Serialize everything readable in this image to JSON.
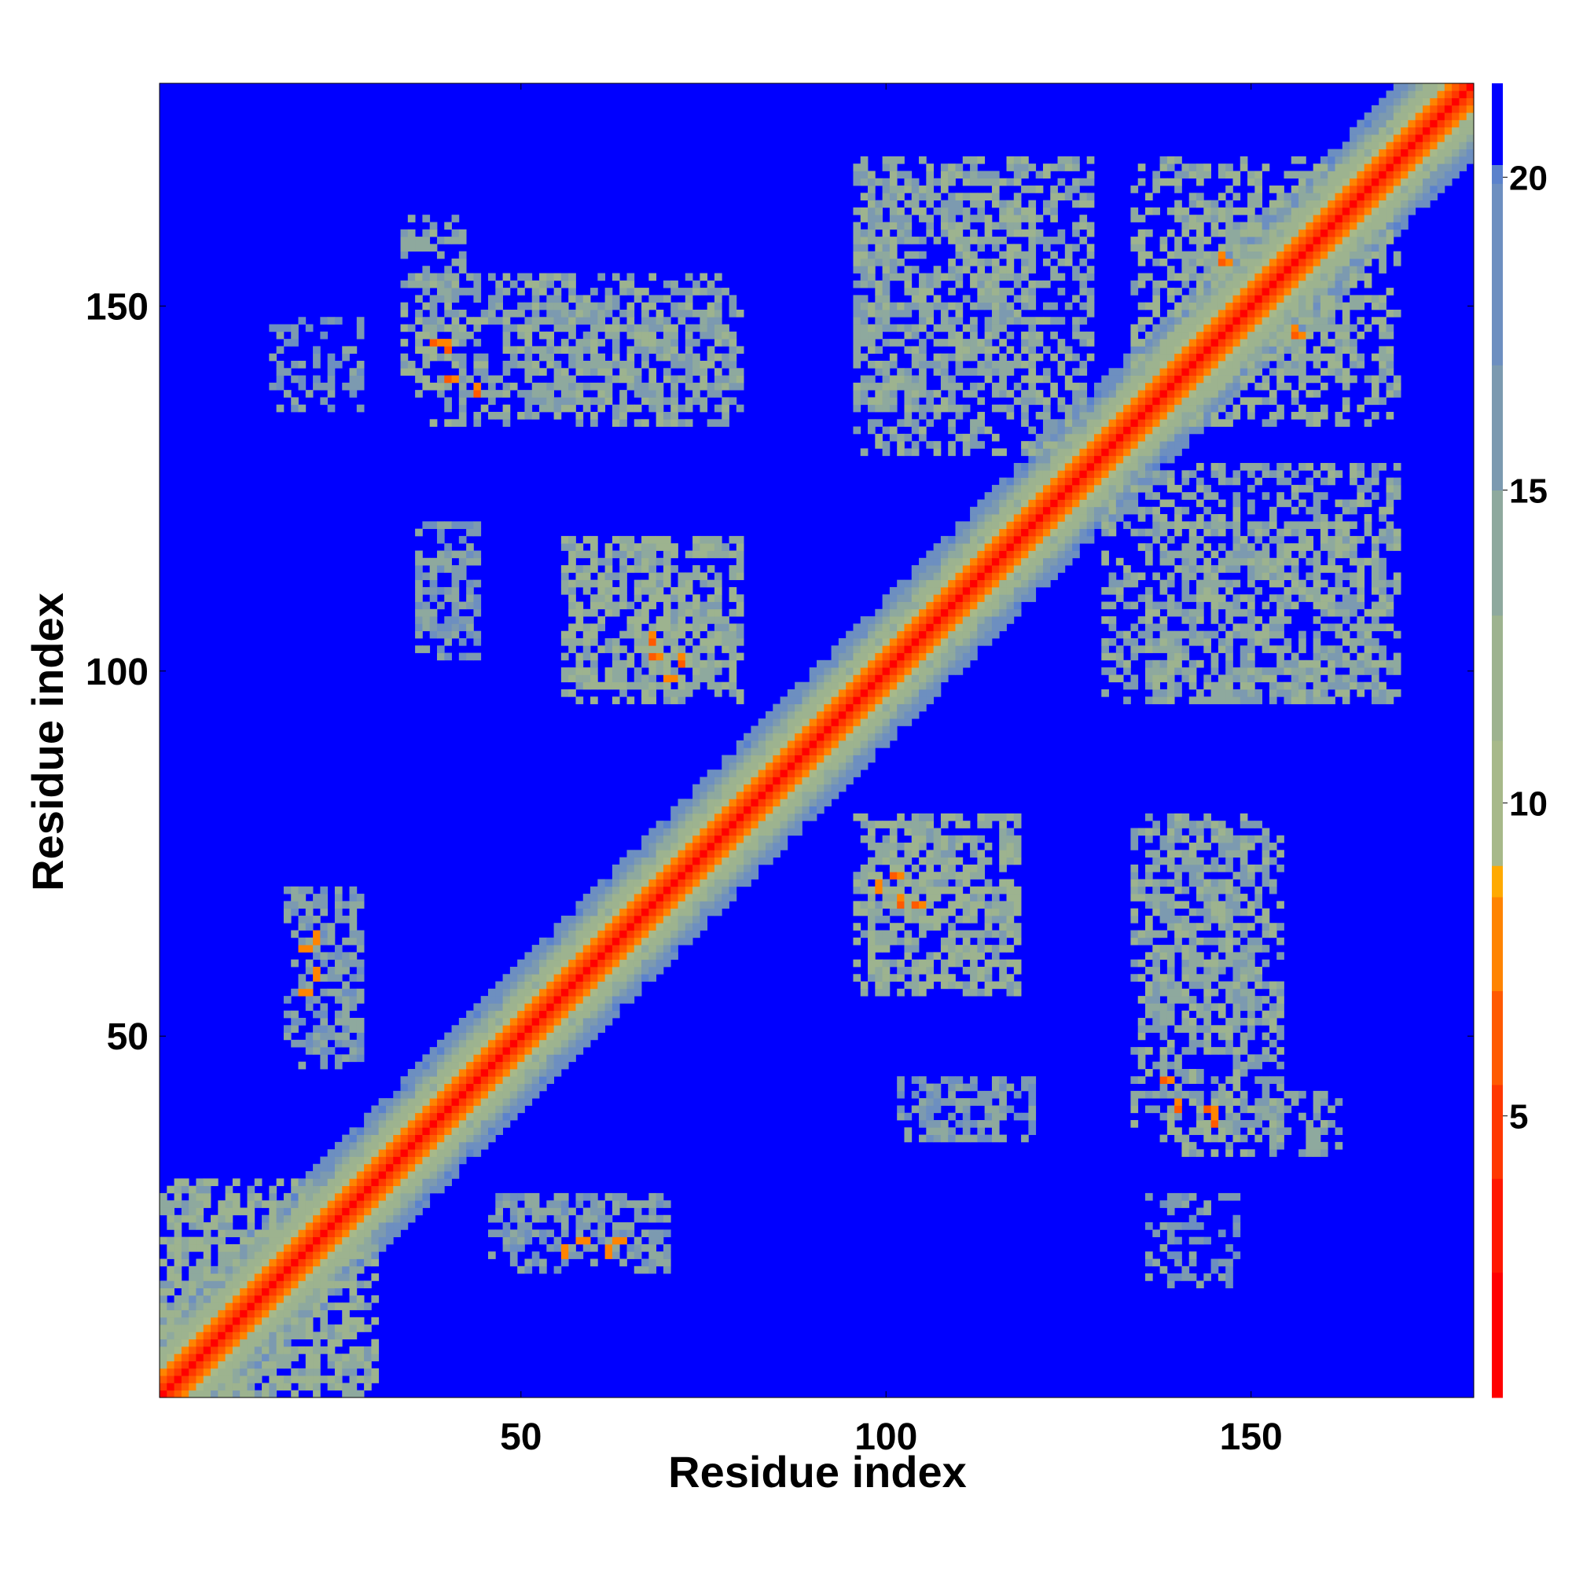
{
  "chart_data": {
    "type": "heatmap",
    "title": "",
    "xlabel": "Residue index",
    "ylabel": "Residue index",
    "xlim": [
      0.5,
      180.5
    ],
    "ylim": [
      0.5,
      180.5
    ],
    "x_ticks": [
      50,
      100,
      150
    ],
    "y_ticks": [
      50,
      100,
      150
    ],
    "x_tick_labels": [
      "50",
      "100",
      "150"
    ],
    "y_tick_labels": [
      "50",
      "100",
      "150"
    ],
    "n_residues": 180,
    "value_description": "pairwise residue distance",
    "diagonal_band": [
      {
        "offset": 0,
        "value": 2
      },
      {
        "offset": 1,
        "value": 4
      },
      {
        "offset": 2,
        "value": 6
      },
      {
        "offset": 3,
        "value": 7
      },
      {
        "offset": 4,
        "value": 9
      },
      {
        "offset": 5,
        "value": 11
      },
      {
        "offset": 6,
        "value": 12
      },
      {
        "offset": 7,
        "value": 14
      },
      {
        "offset": 8,
        "value": 16
      },
      {
        "offset": 9,
        "value": 18
      },
      {
        "offset": 10,
        "value": 19
      }
    ],
    "contact_regions": [
      {
        "x_range": [
          18,
          28
        ],
        "y_range": [
          48,
          70
        ],
        "value": 15
      },
      {
        "x_range": [
          34,
          42
        ],
        "y_range": [
          140,
          162
        ],
        "value": 14
      },
      {
        "x_range": [
          50,
          78
        ],
        "y_range": [
          136,
          150
        ],
        "value": 14
      },
      {
        "x_range": [
          56,
          80
        ],
        "y_range": [
          98,
          118
        ],
        "value": 13
      },
      {
        "x_range": [
          36,
          44
        ],
        "y_range": [
          104,
          116
        ],
        "value": 15
      },
      {
        "x_range": [
          46,
          70
        ],
        "y_range": [
          20,
          28
        ],
        "value": 16
      },
      {
        "x_range": [
          96,
          120
        ],
        "y_range": [
          136,
          168
        ],
        "value": 14
      },
      {
        "x_range": [
          96,
          118
        ],
        "y_range": [
          56,
          80
        ],
        "value": 13
      },
      {
        "x_range": [
          102,
          120
        ],
        "y_range": [
          36,
          44
        ],
        "value": 16
      },
      {
        "x_range": [
          134,
          154
        ],
        "y_range": [
          36,
          80
        ],
        "value": 14
      },
      {
        "x_range": [
          136,
          148
        ],
        "y_range": [
          16,
          28
        ],
        "value": 16
      },
      {
        "x_range": [
          130,
          170
        ],
        "y_range": [
          96,
          128
        ],
        "value": 14
      },
      {
        "x_range": [
          134,
          164
        ],
        "y_range": [
          140,
          170
        ],
        "value": 13
      },
      {
        "x_range": [
          1,
          28
        ],
        "y_range": [
          1,
          30
        ],
        "value": 13
      }
    ],
    "close_contacts": [
      {
        "x": 38,
        "y": 145,
        "value": 6
      },
      {
        "x": 40,
        "y": 140,
        "value": 6
      },
      {
        "x": 68,
        "y": 102,
        "value": 6
      },
      {
        "x": 70,
        "y": 99,
        "value": 7
      },
      {
        "x": 101,
        "y": 72,
        "value": 6
      },
      {
        "x": 104,
        "y": 68,
        "value": 6
      },
      {
        "x": 138,
        "y": 44,
        "value": 6
      },
      {
        "x": 144,
        "y": 40,
        "value": 6
      },
      {
        "x": 20,
        "y": 62,
        "value": 7
      },
      {
        "x": 20,
        "y": 56,
        "value": 7
      },
      {
        "x": 58,
        "y": 22,
        "value": 7
      },
      {
        "x": 63,
        "y": 22,
        "value": 7
      },
      {
        "x": 146,
        "y": 156,
        "value": 6
      },
      {
        "x": 156,
        "y": 146,
        "value": 6
      }
    ],
    "background_value": 21,
    "colorbar": {
      "range": [
        0.5,
        21.5
      ],
      "ticks": [
        5,
        10,
        15,
        20
      ],
      "tick_labels": [
        "5",
        "10",
        "15",
        "20"
      ],
      "color_stops": [
        {
          "value": 0.5,
          "color": "#ff0000"
        },
        {
          "value": 2.5,
          "color": "#ff1800"
        },
        {
          "value": 4.0,
          "color": "#ff3800"
        },
        {
          "value": 5.5,
          "color": "#ff5a00"
        },
        {
          "value": 7.0,
          "color": "#ff8400"
        },
        {
          "value": 8.5,
          "color": "#ffaa00"
        },
        {
          "value": 9.0,
          "color": "#a7b98a"
        },
        {
          "value": 11.0,
          "color": "#9db38f"
        },
        {
          "value": 13.0,
          "color": "#8ea99e"
        },
        {
          "value": 15.0,
          "color": "#7c9ab0"
        },
        {
          "value": 17.0,
          "color": "#6d8fc0"
        },
        {
          "value": 19.9,
          "color": "#5b82cc"
        },
        {
          "value": 20.2,
          "color": "#0000ff"
        },
        {
          "value": 21.5,
          "color": "#0000ff"
        }
      ]
    }
  }
}
